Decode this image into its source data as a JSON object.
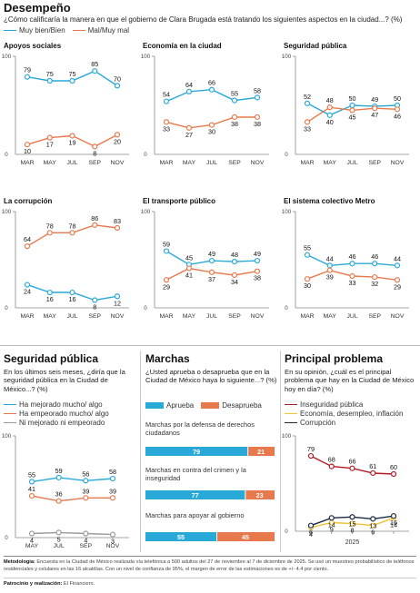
{
  "header": {
    "title": "Desempeño",
    "question": "¿Cómo calificaría la manera en que el gobierno de Clara Brugada está tratando los siguientes aspectos en la ciudad...? (%)",
    "legend": [
      {
        "label": "Muy bien/Bien",
        "color": "#29a9d8"
      },
      {
        "label": "Mal/Muy mal",
        "color": "#e8794c"
      }
    ]
  },
  "colors": {
    "blue": "#29a9d8",
    "orange": "#e8794c",
    "gray": "#9a9a9a",
    "red": "#b21b26",
    "yellow": "#f1c232",
    "navy": "#1a2a44"
  },
  "chart_data": [
    {
      "type": "line",
      "title": "Apoyos sociales",
      "x": [
        "MAR",
        "MAY",
        "JUL",
        "SEP",
        "NOV"
      ],
      "ylim": [
        0,
        100
      ],
      "yticks": [
        "100",
        "0"
      ],
      "series": [
        {
          "name": "Muy bien/Bien",
          "color": "#29a9d8",
          "values": [
            79,
            75,
            75,
            85,
            70
          ]
        },
        {
          "name": "Mal/Muy mal",
          "color": "#e8794c",
          "values": [
            10,
            17,
            19,
            8,
            20
          ]
        }
      ]
    },
    {
      "type": "line",
      "title": "Economía en la ciudad",
      "x": [
        "MAR",
        "MAY",
        "JUL",
        "SEP",
        "NOV"
      ],
      "ylim": [
        0,
        100
      ],
      "yticks": [
        "100",
        "0"
      ],
      "series": [
        {
          "name": "Muy bien/Bien",
          "color": "#29a9d8",
          "values": [
            54,
            64,
            66,
            55,
            58
          ]
        },
        {
          "name": "Mal/Muy mal",
          "color": "#e8794c",
          "values": [
            33,
            27,
            30,
            38,
            38
          ]
        }
      ]
    },
    {
      "type": "line",
      "title": "Seguridad pública",
      "x": [
        "MAR",
        "MAY",
        "JUL",
        "SEP",
        "NOV"
      ],
      "ylim": [
        0,
        100
      ],
      "yticks": [
        "100",
        "0"
      ],
      "series": [
        {
          "name": "Muy bien/Bien",
          "color": "#29a9d8",
          "values": [
            52,
            40,
            50,
            49,
            50
          ]
        },
        {
          "name": "Mal/Muy mal",
          "color": "#e8794c",
          "values": [
            33,
            48,
            45,
            47,
            46
          ]
        }
      ]
    },
    {
      "type": "line",
      "title": "La corrupción",
      "x": [
        "MAR",
        "MAY",
        "JUL",
        "SEP",
        "NOV"
      ],
      "ylim": [
        0,
        100
      ],
      "yticks": [
        "100",
        "0"
      ],
      "series": [
        {
          "name": "Muy bien/Bien",
          "color": "#29a9d8",
          "values": [
            24,
            16,
            16,
            8,
            12
          ]
        },
        {
          "name": "Mal/Muy mal",
          "color": "#e8794c",
          "values": [
            64,
            78,
            78,
            86,
            83
          ]
        }
      ]
    },
    {
      "type": "line",
      "title": "El transporte público",
      "x": [
        "MAR",
        "MAY",
        "JUL",
        "SEP",
        "NOV"
      ],
      "ylim": [
        0,
        100
      ],
      "yticks": [
        "100",
        "0"
      ],
      "series": [
        {
          "name": "Muy bien/Bien",
          "color": "#29a9d8",
          "values": [
            59,
            45,
            49,
            48,
            49
          ]
        },
        {
          "name": "Mal/Muy mal",
          "color": "#e8794c",
          "values": [
            29,
            41,
            37,
            34,
            38
          ]
        }
      ]
    },
    {
      "type": "line",
      "title": "El sistema colectivo Metro",
      "x": [
        "MAR",
        "MAY",
        "JUL",
        "SEP",
        "NOV"
      ],
      "ylim": [
        0,
        100
      ],
      "yticks": [
        "100",
        "0"
      ],
      "series": [
        {
          "name": "Muy bien/Bien",
          "color": "#29a9d8",
          "values": [
            55,
            44,
            46,
            46,
            44
          ]
        },
        {
          "name": "Mal/Muy mal",
          "color": "#e8794c",
          "values": [
            30,
            39,
            33,
            32,
            29
          ]
        }
      ]
    },
    {
      "type": "line",
      "title": "Seguridad pública",
      "question": "En los últimos seis meses, ¿diría que la seguridad pública en la Ciudad de México...? (%)",
      "x": [
        "MAY",
        "JUL",
        "SEP",
        "NOV"
      ],
      "ylim": [
        0,
        100
      ],
      "yticks": [
        "100",
        "0"
      ],
      "legend": [
        "Ha mejorado mucho/ algo",
        "Ha empeorado mucho/ algo",
        "Ni mejorado ni empeorado"
      ],
      "series": [
        {
          "name": "Ha mejorado mucho/ algo",
          "color": "#29a9d8",
          "values": [
            55,
            59,
            56,
            58
          ]
        },
        {
          "name": "Ha empeorado mucho/ algo",
          "color": "#e8794c",
          "values": [
            41,
            36,
            39,
            39
          ]
        },
        {
          "name": "Ni mejorado ni empeorado",
          "color": "#9a9a9a",
          "values": [
            4,
            5,
            4,
            3
          ]
        }
      ]
    },
    {
      "type": "bar",
      "title": "Marchas",
      "question": "¿Usted aprueba o desaprueba que en la Ciudad de México haya lo siguiente...? (%)",
      "legend": [
        "Aprueba",
        "Desaprueba"
      ],
      "categories": [
        "Marchas por la defensa de derechos ciudadanos",
        "Marchas en contra del crimen y la inseguridad",
        "Marchas para apoyar al gobierno"
      ],
      "series": [
        {
          "name": "Aprueba",
          "color": "#29a9d8",
          "values": [
            79,
            77,
            55
          ]
        },
        {
          "name": "Desaprueba",
          "color": "#e8794c",
          "values": [
            21,
            23,
            45
          ]
        }
      ]
    },
    {
      "type": "line",
      "title": "Principal problema",
      "question": "En su opinión, ¿cuál es el principal problema que hay en la Ciudad de México hoy en día? (%)",
      "x": [
        "",
        "",
        "",
        "",
        ""
      ],
      "xlabel": "2025",
      "ylim": [
        0,
        100
      ],
      "yticks": [
        "100",
        "0"
      ],
      "legend": [
        "Inseguridad pública",
        "Economía, desempleo, inflación",
        "Corrupción"
      ],
      "series": [
        {
          "name": "Inseguridad pública",
          "color": "#b21b26",
          "values": [
            79,
            68,
            66,
            61,
            60
          ]
        },
        {
          "name": "Economía, desempleo, inflación",
          "color": "#f1c232",
          "values": [
            4,
            9,
            8,
            6,
            14
          ]
        },
        {
          "name": "Corrupción",
          "color": "#1a2a44",
          "values": [
            6,
            14,
            15,
            13,
            16
          ]
        }
      ]
    }
  ],
  "footer": {
    "method_label": "Metodología:",
    "method_text": "Encuesta en la Ciudad de México realizada vía telefónica a 500 adultos del 27 de noviembre al 7 de diciembre de 2025. Se usó un muestreo probabilístico de teléfonos residenciales y celulares en las 16 alcaldías. Con un nivel de confianza de 95%, el margen de error de las estimaciones es de +/- 4.4 por ciento.",
    "credit_label": "Patrocinio y realización:",
    "credit_text": "El Financiero."
  }
}
